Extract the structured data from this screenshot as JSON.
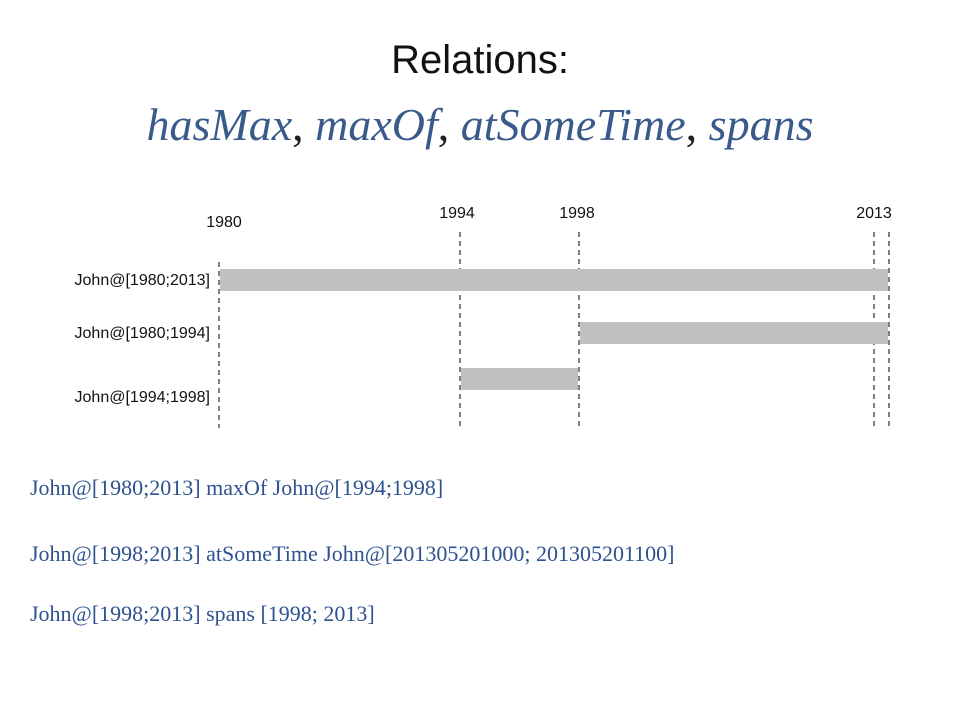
{
  "title": {
    "main": "Relations:",
    "relations": [
      "hasMax",
      "maxOf",
      "atSomeTime",
      "spans"
    ],
    "separator": ", "
  },
  "colors": {
    "relation_text": "#3a5a8c",
    "statement_text": "#2e528f",
    "bar_fill": "#c0c0c0",
    "guide_line": "#000000"
  },
  "timeline": {
    "ticks": [
      "1980",
      "1994",
      "1998",
      "2013"
    ],
    "rows": [
      {
        "label": "John@[1980;2013]"
      },
      {
        "label": "John@[1980;1994]"
      },
      {
        "label": "John@[1994;1998]"
      }
    ]
  },
  "statements": [
    "John@[1980;2013] maxOf John@[1994;1998]",
    "John@[1998;2013] atSomeTime John@[201305201000; 201305201100]",
    "John@[1998;2013] spans [1998; 2013]"
  ]
}
